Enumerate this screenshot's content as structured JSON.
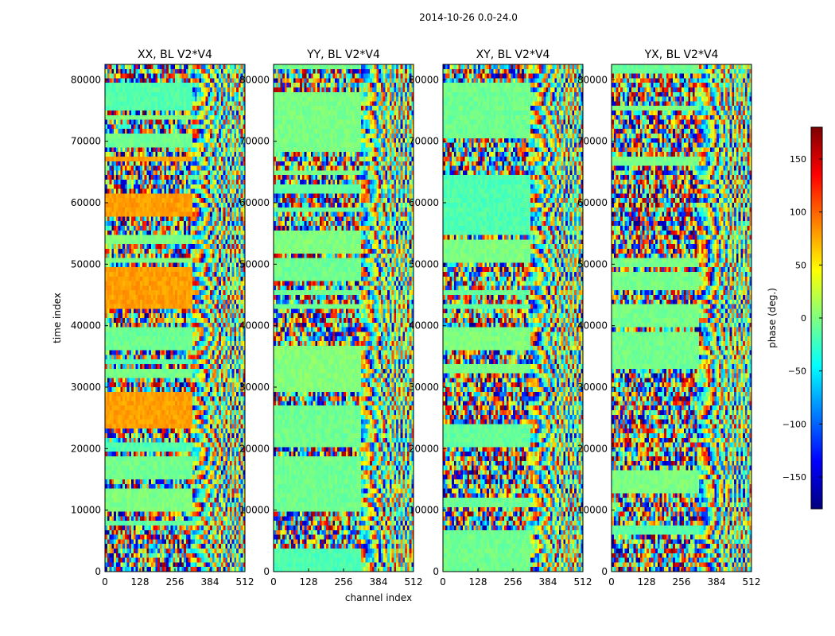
{
  "figure_title": "2014-10-26 0.0-24.0",
  "chart_data": {
    "type": "heatmap",
    "suptitle": "2014-10-26 0.0-24.0",
    "xlabel": "channel index",
    "ylabel": "time index",
    "xlim": [
      0,
      512
    ],
    "ylim": [
      0,
      82500
    ],
    "xticks": [
      0,
      128,
      256,
      384,
      512
    ],
    "yticks": [
      0,
      10000,
      20000,
      30000,
      40000,
      50000,
      60000,
      70000,
      80000
    ],
    "panels": [
      {
        "title": "XX, BL V2*V4",
        "pol": "XX"
      },
      {
        "title": "YY, BL V2*V4",
        "pol": "YY"
      },
      {
        "title": "XY, BL V2*V4",
        "pol": "XY"
      },
      {
        "title": "YX, BL V2*V4",
        "pol": "YX"
      }
    ],
    "colorbar": {
      "label": "phase (deg.)",
      "range": [
        -180,
        180
      ],
      "ticks": [
        -150,
        -100,
        -50,
        0,
        50,
        100,
        150
      ],
      "colormap": "jet"
    }
  }
}
